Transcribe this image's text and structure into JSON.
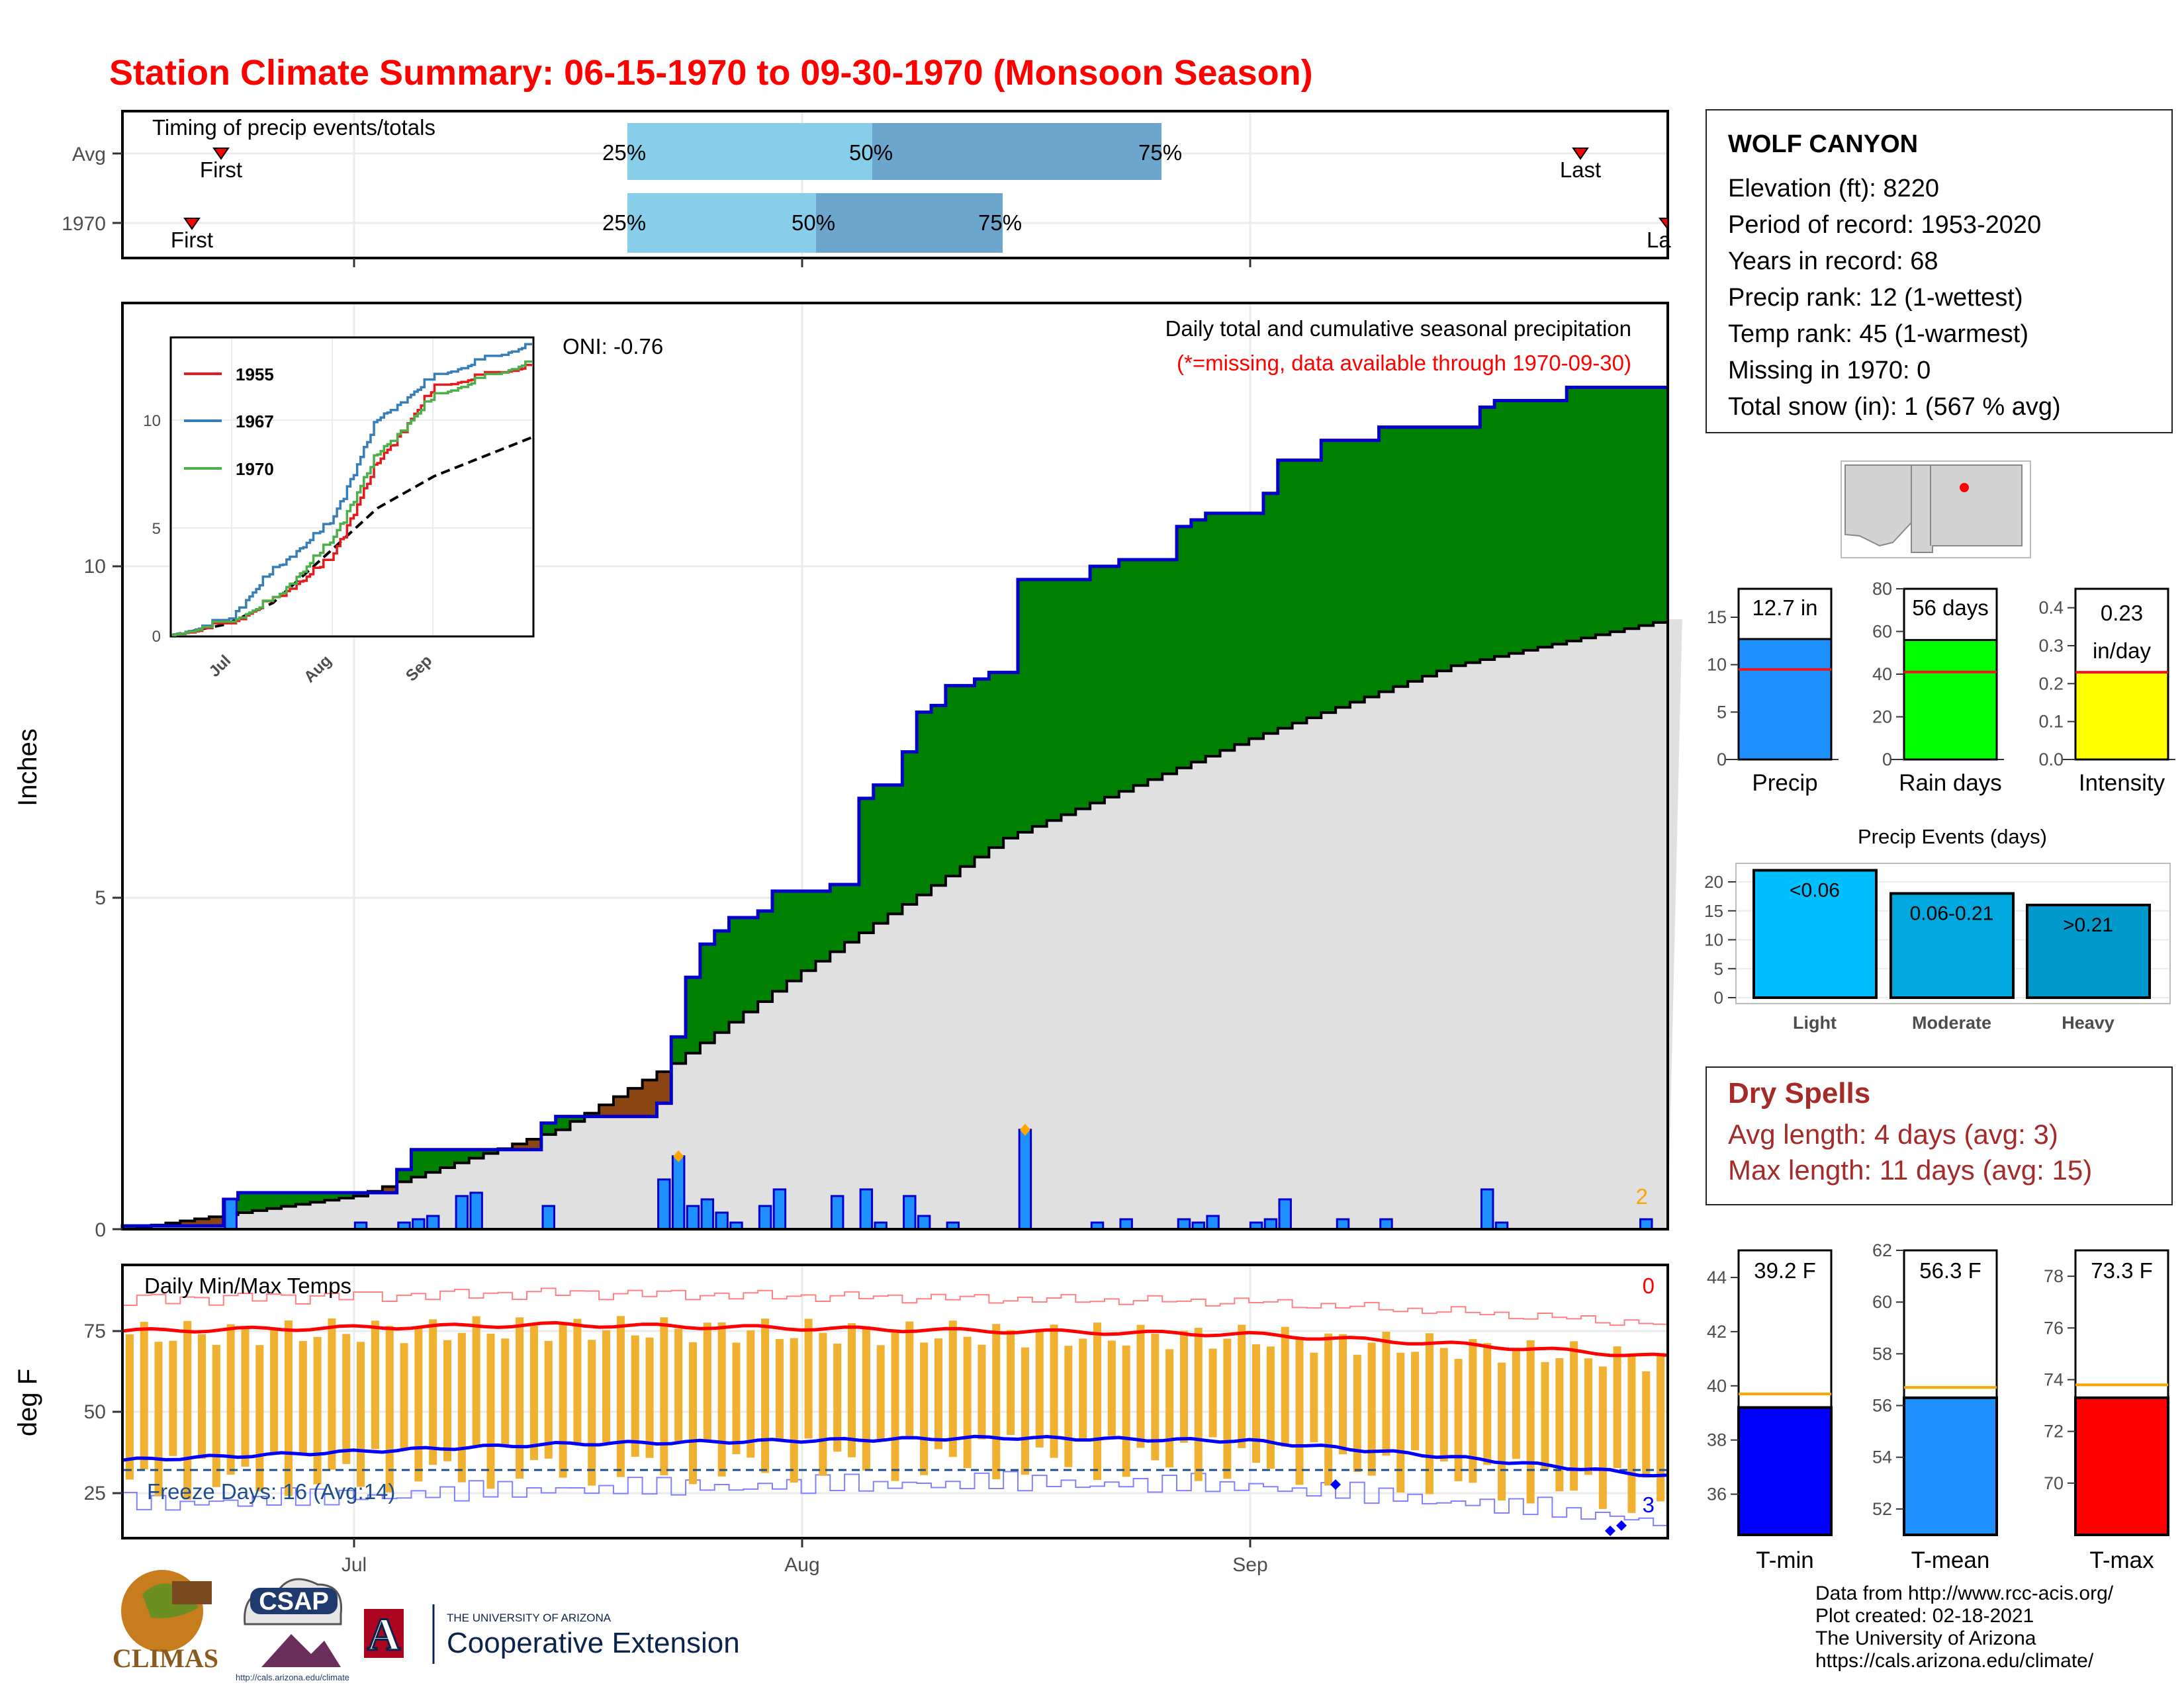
{
  "title": "Station Climate Summary: 06-15-1970 to 09-30-1970 (Monsoon Season)",
  "timing": {
    "title": "Timing of precip events/totals",
    "rows": [
      {
        "label": "Avg",
        "first_label": "First",
        "last_label": "Last",
        "p25": "25%",
        "p50": "50%",
        "p75": "75%"
      },
      {
        "label": "1970",
        "first_label": "First",
        "last_label": "La",
        "p25": "25%",
        "p50": "50%",
        "p75": "75%"
      }
    ],
    "colors": {
      "light": "#87ceeb",
      "dark": "#6ca6cd",
      "marker": "#ff0000"
    }
  },
  "precip_panel": {
    "ylabel": "Inches",
    "oni": "ONI: -0.76",
    "legend1": "Daily total and cumulative seasonal precipitation",
    "legend2": "(*=missing, data available through 1970-09-30)",
    "missing_count": "2",
    "yticks": [
      "0",
      "5",
      "10"
    ],
    "colors": {
      "above": "#008000",
      "below": "#8b4513",
      "normal": "#e0e0e0",
      "bars": "#1e90ff",
      "outline": "#0000cd"
    }
  },
  "inset": {
    "series": [
      {
        "name": "1955",
        "color": "#e41a1c"
      },
      {
        "name": "1967",
        "color": "#377eb8"
      },
      {
        "name": "1970",
        "color": "#4daf4a"
      }
    ],
    "yticks": [
      "0",
      "5",
      "10"
    ],
    "xticks": [
      "Jul",
      "Aug",
      "Sep"
    ]
  },
  "temp_panel": {
    "ylabel": "deg F",
    "title": "Daily Min/Max Temps",
    "freeze": "Freeze Days: 16 (Avg:14)",
    "hot_count": "0",
    "cold_count": "3",
    "yticks": [
      "25",
      "50",
      "75"
    ],
    "xticks": [
      "Jul",
      "Aug",
      "Sep"
    ]
  },
  "station": {
    "name": "WOLF CANYON",
    "lines": [
      "Elevation (ft): 8220",
      "Period of record: 1953-2020",
      "Years in record: 68",
      "Precip rank: 12 (1-wettest)",
      "Temp rank: 45 (1-warmest)",
      "Missing in 1970: 0",
      "Total snow (in): 1 (567 % avg)"
    ]
  },
  "summary_bars": [
    {
      "label": "Precip",
      "value_text": "12.7 in",
      "value": 12.7,
      "avg": 9.5,
      "max": 18,
      "ticks": [
        "0",
        "5",
        "10",
        "15"
      ],
      "color": "#1e90ff"
    },
    {
      "label": "Rain days",
      "value_text": "56 days",
      "value": 56,
      "avg": 41,
      "max": 80,
      "ticks": [
        "0",
        "20",
        "40",
        "60",
        "80"
      ],
      "color": "#00ff00"
    },
    {
      "label": "Intensity",
      "value_text": "0.23",
      "value_text2": "in/day",
      "value": 0.23,
      "avg": 0.23,
      "max": 0.45,
      "ticks": [
        "0.0",
        "0.1",
        "0.2",
        "0.3",
        "0.4"
      ],
      "color": "#ffff00"
    }
  ],
  "events": {
    "title": "Precip Events (days)",
    "categories": [
      "Light",
      "Moderate",
      "Heavy"
    ],
    "labels": [
      "<0.06",
      "0.06-0.21",
      ">0.21"
    ],
    "values": [
      22,
      18,
      16
    ],
    "yticks": [
      "0",
      "5",
      "10",
      "15",
      "20"
    ],
    "colors": [
      "#00bfff",
      "#00a8e0",
      "#0099cc"
    ]
  },
  "dry_spells": {
    "title": "Dry Spells",
    "avg": "Avg length: 4 days (avg: 3)",
    "max": "Max length: 11 days (avg: 15)"
  },
  "temp_bars": [
    {
      "label": "T-min",
      "value_text": "39.2 F",
      "value": 39.2,
      "avg": 39.7,
      "min": 34.5,
      "max": 45,
      "ticks": [
        "36",
        "38",
        "40",
        "42",
        "44"
      ],
      "color": "#0000ff"
    },
    {
      "label": "T-mean",
      "value_text": "56.3 F",
      "value": 56.3,
      "avg": 56.7,
      "min": 51,
      "max": 62,
      "ticks": [
        "52",
        "54",
        "56",
        "58",
        "60",
        "62"
      ],
      "color": "#1e90ff"
    },
    {
      "label": "T-max",
      "value_text": "73.3 F",
      "value": 73.3,
      "avg": 73.8,
      "min": 68,
      "max": 79,
      "ticks": [
        "70",
        "72",
        "74",
        "76",
        "78"
      ],
      "color": "#ff0000"
    }
  ],
  "footer": [
    "Data from http://www.rcc-acis.org/",
    "Plot created: 02-18-2021",
    "The University of Arizona",
    "https://cals.arizona.edu/climate/"
  ],
  "logos": {
    "climas": "CLIMAS",
    "csap": "CSAP",
    "csap_url": "http://cals.arizona.edu/climate",
    "ua_small": "THE UNIVERSITY OF ARIZONA",
    "ua_big": "Cooperative Extension",
    "ua_letter": "A"
  },
  "chart_data": [
    {
      "type": "bar",
      "title": "Timing of precip events/totals",
      "categories": [
        "Avg",
        "1970"
      ],
      "series": [
        {
          "name": "First",
          "values": [
            "06-19",
            "06-15"
          ]
        },
        {
          "name": "25%",
          "values": [
            "07-23",
            "07-23"
          ]
        },
        {
          "name": "50%",
          "values": [
            "08-08",
            "08-04"
          ]
        },
        {
          "name": "75%",
          "values": [
            "08-24",
            "08-15"
          ]
        },
        {
          "name": "Last",
          "values": [
            "09-24",
            "09-30"
          ]
        }
      ]
    },
    {
      "type": "area",
      "title": "Daily total and cumulative seasonal precipitation",
      "ylabel": "Inches",
      "x_start": "1970-06-15",
      "x_end": "1970-09-30",
      "ylim": [
        0,
        14
      ],
      "series": [
        {
          "name": "cumulative 1970",
          "x": [
            "06-15",
            "06-22",
            "06-23",
            "07-04",
            "07-05",
            "07-14",
            "07-15",
            "07-22",
            "07-23",
            "07-24",
            "07-25",
            "07-26",
            "07-27",
            "07-29",
            "07-30",
            "08-03",
            "08-05",
            "08-06",
            "08-08",
            "08-09",
            "08-10",
            "08-11",
            "08-13",
            "08-14",
            "08-15",
            "08-16",
            "08-21",
            "08-23",
            "08-27",
            "08-28",
            "08-29",
            "09-02",
            "09-03",
            "09-06",
            "09-07",
            "09-10",
            "09-11",
            "09-17",
            "09-18",
            "09-20",
            "09-23",
            "09-24",
            "09-30"
          ],
          "values": [
            0.05,
            0.45,
            0.55,
            0.9,
            1.2,
            1.6,
            1.7,
            1.9,
            2.9,
            3.8,
            4.3,
            4.5,
            4.7,
            4.8,
            5.1,
            5.2,
            6.5,
            6.7,
            7.2,
            7.8,
            7.9,
            8.2,
            8.3,
            8.4,
            8.4,
            9.8,
            10.0,
            10.1,
            10.6,
            10.7,
            10.8,
            11.1,
            11.6,
            11.9,
            11.9,
            12.1,
            12.1,
            12.4,
            12.5,
            12.5,
            12.7,
            12.7,
            12.7
          ]
        },
        {
          "name": "normal cumulative",
          "x": [
            "06-15",
            "07-01",
            "07-15",
            "07-23",
            "08-01",
            "08-15",
            "09-01",
            "09-15",
            "09-30"
          ],
          "values": [
            0,
            0.5,
            1.5,
            2.5,
            3.9,
            5.9,
            7.4,
            8.5,
            9.2
          ]
        }
      ],
      "daily": {
        "x": [
          "06-22",
          "07-01",
          "07-04",
          "07-05",
          "07-06",
          "07-08",
          "07-09",
          "07-14",
          "07-22",
          "07-23",
          "07-24",
          "07-25",
          "07-26",
          "07-27",
          "07-29",
          "07-30",
          "08-03",
          "08-05",
          "08-06",
          "08-08",
          "08-09",
          "08-11",
          "08-16",
          "08-21",
          "08-23",
          "08-27",
          "08-28",
          "08-29",
          "09-01",
          "09-02",
          "09-03",
          "09-07",
          "09-10",
          "09-17",
          "09-18",
          "09-28"
        ],
        "values": [
          0.45,
          0.1,
          0.1,
          0.15,
          0.2,
          0.5,
          0.55,
          0.35,
          0.75,
          1.1,
          0.35,
          0.45,
          0.25,
          0.1,
          0.35,
          0.6,
          0.5,
          0.6,
          0.1,
          0.5,
          0.2,
          0.1,
          1.5,
          0.1,
          0.15,
          0.15,
          0.1,
          0.2,
          0.1,
          0.15,
          0.45,
          0.15,
          0.15,
          0.6,
          0.1,
          0.15
        ]
      }
    },
    {
      "type": "line",
      "title": "cumulative precipitation inset",
      "ylim": [
        0,
        13.5
      ],
      "series": [
        {
          "name": "1955",
          "x": [
            "06-15",
            "07-01",
            "07-15",
            "08-01",
            "08-15",
            "09-01",
            "09-30"
          ],
          "values": [
            0,
            0.4,
            1.6,
            3.5,
            8.0,
            11.5,
            12.5
          ]
        },
        {
          "name": "1967",
          "x": [
            "06-15",
            "07-01",
            "07-15",
            "08-01",
            "08-15",
            "09-01",
            "09-30"
          ],
          "values": [
            0,
            0.6,
            3.0,
            5.2,
            10.0,
            12.0,
            13.5
          ]
        },
        {
          "name": "1970",
          "x": [
            "06-15",
            "07-01",
            "07-15",
            "08-01",
            "08-15",
            "09-01",
            "09-30"
          ],
          "values": [
            0,
            0.5,
            1.6,
            4.3,
            8.4,
            11.1,
            12.7
          ]
        },
        {
          "name": "average",
          "x": [
            "06-15",
            "07-01",
            "07-15",
            "08-01",
            "08-15",
            "09-01",
            "09-30"
          ],
          "values": [
            0,
            0.5,
            1.5,
            3.9,
            5.9,
            7.4,
            9.2
          ]
        }
      ]
    },
    {
      "type": "line",
      "title": "Daily Min/Max Temps",
      "ylabel": "deg F",
      "ylim": [
        15,
        90
      ],
      "series": [
        {
          "name": "avg max",
          "x": [
            "06-15",
            "07-15",
            "08-15",
            "09-01",
            "09-15",
            "09-30"
          ],
          "values": [
            75,
            77,
            75,
            74,
            71,
            67
          ]
        },
        {
          "name": "avg min",
          "x": [
            "06-15",
            "07-15",
            "08-15",
            "09-01",
            "09-15",
            "09-30"
          ],
          "values": [
            35,
            40,
            42,
            41,
            36,
            30
          ]
        },
        {
          "name": "freeze line",
          "x": [
            "06-15",
            "09-30"
          ],
          "values": [
            32,
            32
          ]
        }
      ]
    }
  ]
}
